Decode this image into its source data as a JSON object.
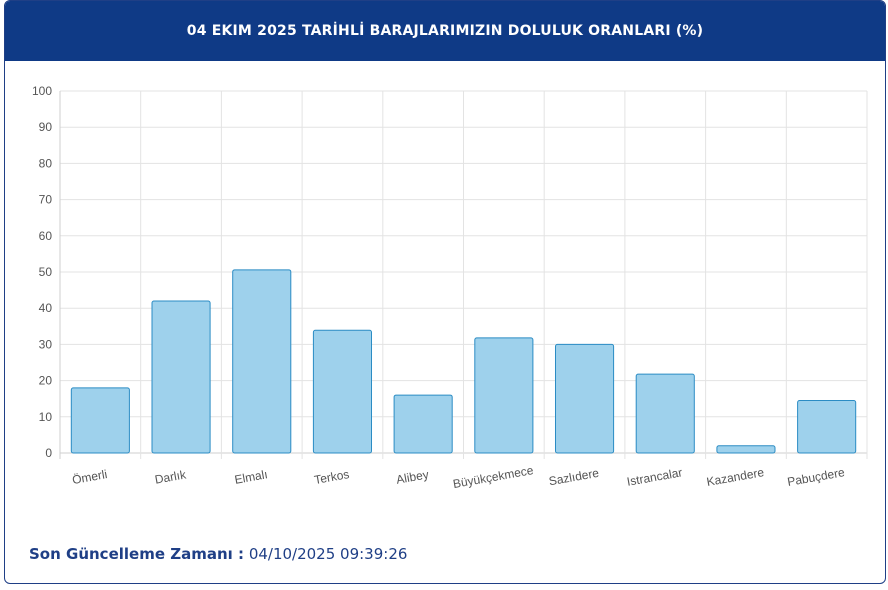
{
  "header": {
    "title": "04 EKIM 2025 TARİHLİ BARAJLARIMIZIN DOLULUK ORANLARI (%)"
  },
  "footer": {
    "label": "Son Güncelleme Zamanı :",
    "value": "04/10/2025 09:39:26"
  },
  "colors": {
    "header_bg": "#0f3a86",
    "bar_fill": "#9ed1ec",
    "bar_stroke": "#2b8cc4",
    "text_dark": "#1f3f86"
  },
  "chart_data": {
    "type": "bar",
    "title": "",
    "xlabel": "",
    "ylabel": "",
    "ylim": [
      0,
      100
    ],
    "yticks": [
      0,
      10,
      20,
      30,
      40,
      50,
      60,
      70,
      80,
      90,
      100
    ],
    "grid": true,
    "categories": [
      "Ömerli",
      "Darlık",
      "Elmalı",
      "Terkos",
      "Alibey",
      "Büyükçekmece",
      "Sazlıdere",
      "Istrancalar",
      "Kazandere",
      "Pabuçdere"
    ],
    "values": [
      18.0,
      42.0,
      50.6,
      33.9,
      16.0,
      31.8,
      30.0,
      21.8,
      2.0,
      14.5
    ]
  }
}
